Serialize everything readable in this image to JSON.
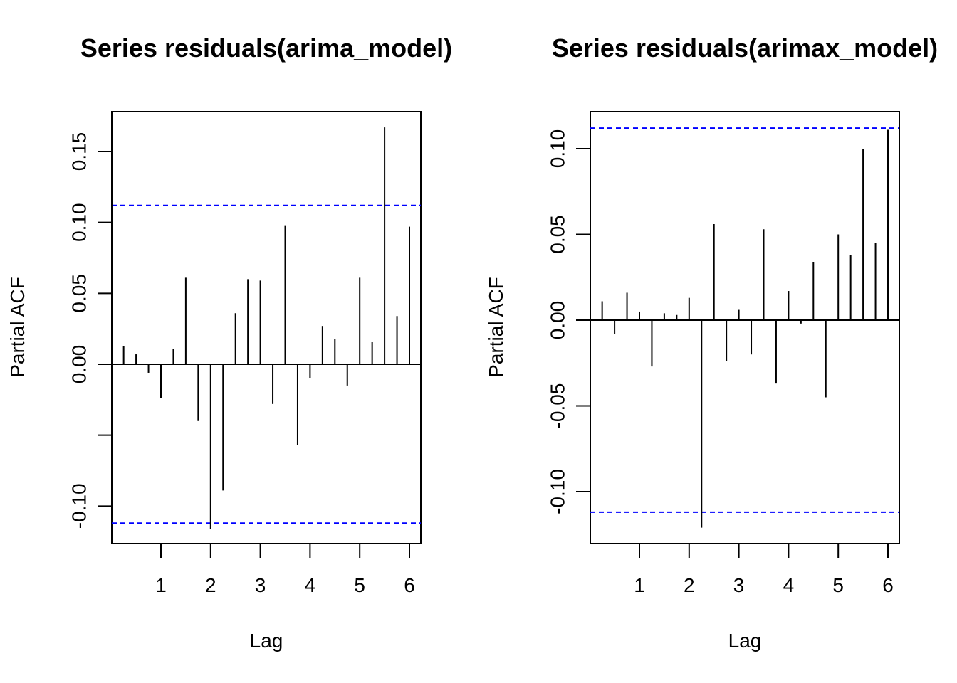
{
  "chart_data": [
    {
      "type": "bar",
      "title": "Series  residuals(arima_model)",
      "xlabel": "Lag",
      "ylabel": "Partial ACF",
      "xlim": [
        0.25,
        6.0
      ],
      "ylim": [
        -0.125,
        0.18
      ],
      "x_ticks": [
        1,
        2,
        3,
        4,
        5,
        6
      ],
      "y_ticks": [
        -0.1,
        -0.05,
        0.0,
        0.05,
        0.1,
        0.15
      ],
      "y_tick_labels": [
        "-0.10",
        "",
        "0.00",
        "0.05",
        "0.10",
        "0.15"
      ],
      "confidence_limit": 0.112,
      "confidence_color": "#0000ff",
      "lags": [
        0.25,
        0.5,
        0.75,
        1.0,
        1.25,
        1.5,
        1.75,
        2.0,
        2.25,
        2.5,
        2.75,
        3.0,
        3.25,
        3.5,
        3.75,
        4.0,
        4.25,
        4.5,
        4.75,
        5.0,
        5.25,
        5.5,
        5.75,
        6.0
      ],
      "values": [
        0.013,
        0.007,
        -0.006,
        -0.024,
        0.011,
        0.061,
        -0.04,
        -0.116,
        -0.089,
        0.036,
        0.06,
        0.059,
        -0.028,
        0.098,
        -0.057,
        -0.01,
        0.027,
        0.018,
        -0.015,
        0.061,
        0.016,
        0.167,
        0.034,
        0.097
      ]
    },
    {
      "type": "bar",
      "title": "Series  residuals(arimax_model)",
      "xlabel": "Lag",
      "ylabel": "Partial ACF",
      "xlim": [
        0.25,
        6.0
      ],
      "ylim": [
        -0.13,
        0.12
      ],
      "x_ticks": [
        1,
        2,
        3,
        4,
        5,
        6
      ],
      "y_ticks": [
        -0.1,
        -0.05,
        0.0,
        0.05,
        0.1
      ],
      "y_tick_labels": [
        "-0.10",
        "-0.05",
        "0.00",
        "0.05",
        "0.10"
      ],
      "confidence_limit": 0.112,
      "confidence_color": "#0000ff",
      "lags": [
        0.25,
        0.5,
        0.75,
        1.0,
        1.25,
        1.5,
        1.75,
        2.0,
        2.25,
        2.5,
        2.75,
        3.0,
        3.25,
        3.5,
        3.75,
        4.0,
        4.25,
        4.5,
        4.75,
        5.0,
        5.25,
        5.5,
        5.75,
        6.0
      ],
      "values": [
        0.011,
        -0.008,
        0.016,
        0.005,
        -0.027,
        0.004,
        0.003,
        0.013,
        -0.121,
        0.056,
        -0.024,
        0.006,
        -0.02,
        0.053,
        -0.037,
        0.017,
        -0.002,
        0.034,
        -0.045,
        0.05,
        0.038,
        0.1,
        0.045,
        0.111
      ]
    }
  ]
}
